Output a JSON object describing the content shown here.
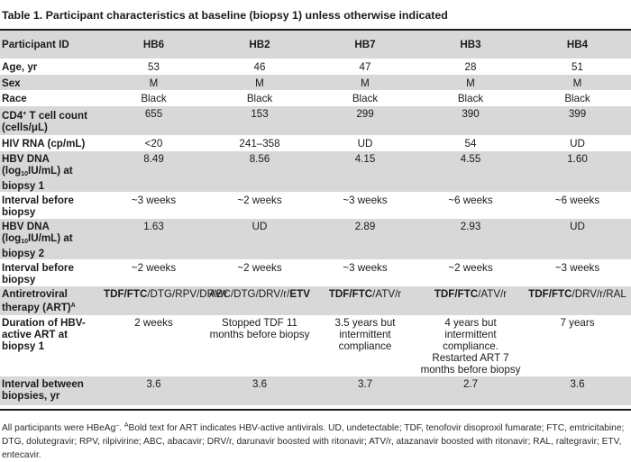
{
  "caption": "Table 1. Participant characteristics at baseline (biopsy 1) unless otherwise indicated",
  "header": {
    "label": "Participant ID",
    "ids": [
      "HB6",
      "HB2",
      "HB7",
      "HB3",
      "HB4"
    ]
  },
  "rows": {
    "age": {
      "label": "Age, yr",
      "values": [
        "53",
        "46",
        "47",
        "28",
        "51"
      ]
    },
    "sex": {
      "label": "Sex",
      "values": [
        "M",
        "M",
        "M",
        "M",
        "M"
      ]
    },
    "race": {
      "label": "Race",
      "values": [
        "Black",
        "Black",
        "Black",
        "Black",
        "Black"
      ]
    },
    "cd4": {
      "label_cd": "CD4",
      "label_sup": "+",
      "label_rest": " T cell count (cells/μL)",
      "values": [
        "655",
        "153",
        "299",
        "390",
        "399"
      ]
    },
    "hiv": {
      "label": "HIV RNA (cp/mL)",
      "values": [
        "<20",
        "241–358",
        "UD",
        "54",
        "UD"
      ]
    },
    "hbv1": {
      "label_pre": "HBV DNA (log",
      "label_sub": "10",
      "label_post": "IU/mL) at biopsy 1",
      "values": [
        "8.49",
        "8.56",
        "4.15",
        "4.55",
        "1.60"
      ]
    },
    "int1": {
      "label": "Interval before biopsy",
      "values": [
        "~3 weeks",
        "~2 weeks",
        "~3 weeks",
        "~6 weeks",
        "~6 weeks"
      ]
    },
    "hbv2": {
      "label_pre": "HBV DNA (log",
      "label_sub": "10",
      "label_post": "IU/mL) at biopsy 2",
      "values": [
        "1.63",
        "UD",
        "2.89",
        "2.93",
        "UD"
      ]
    },
    "int2": {
      "label": "Interval before biopsy",
      "values": [
        "~2 weeks",
        "~2 weeks",
        "~3 weeks",
        "~2 weeks",
        "~3 weeks"
      ]
    },
    "art": {
      "label": "Antiretroviral therapy (ART)",
      "label_sup": "A",
      "hb6": {
        "b1": "TDF",
        "s1": "/",
        "b2": "FTC",
        "rest": "/DTG/RPV/DRV/r"
      },
      "hb2": {
        "pre": "ABC/DTG/DRV/r/",
        "b1": "ETV"
      },
      "hb7": {
        "b1": "TDF",
        "s1": "/",
        "b2": "FTC",
        "rest": "/ATV/r"
      },
      "hb3": {
        "b1": "TDF",
        "s1": "/",
        "b2": "FTC",
        "rest": "/ATV/r"
      },
      "hb4": {
        "b1": "TDF",
        "s1": "/",
        "b2": "FTC",
        "rest": "/DRV/r/RAL"
      }
    },
    "duration": {
      "label": "Duration of HBV-active ART at biopsy 1",
      "values": [
        "2 weeks",
        "Stopped TDF 11 months before biopsy",
        "3.5 years but intermittent compliance",
        "4 years but intermittent compliance. Restarted ART 7 months before biopsy",
        "7 years"
      ]
    },
    "between": {
      "label": "Interval between biopsies, yr",
      "values": [
        "3.6",
        "3.6",
        "3.7",
        "2.7",
        "3.6"
      ]
    }
  },
  "footnote": {
    "part1": "All participants were HBeAg",
    "sup1": "–",
    "part2": ". ",
    "sup2": "A",
    "part3": "Bold text for ART indicates HBV-active antivirals. UD, undetectable; TDF, tenofovir disoproxil fumarate; FTC, emtricitabine; DTG, dolutegravir; RPV, rilpivirine; ABC, abacavir; DRV/r, darunavir boosted with ritonavir; ATV/r, atazanavir boosted with ritonavir; RAL, raltegravir; ETV, entecavir."
  }
}
